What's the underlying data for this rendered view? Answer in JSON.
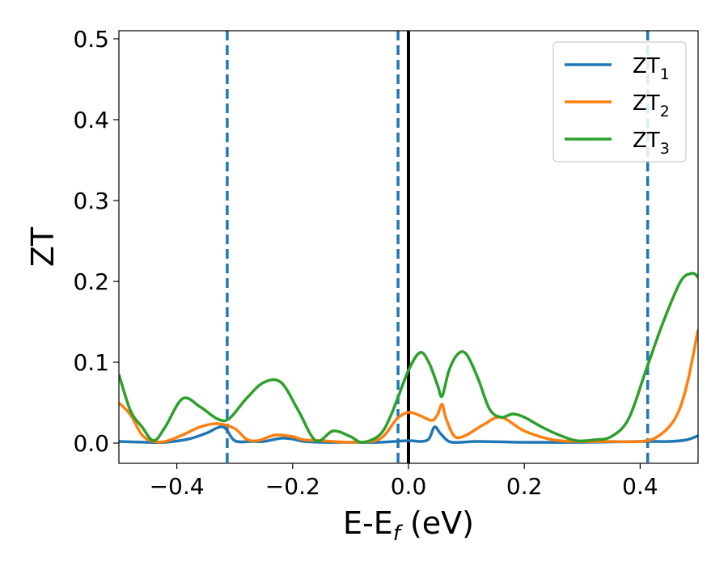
{
  "chart_data": {
    "type": "line",
    "xlabel": "E-E_f (eV)",
    "xlabel_main": "E-E",
    "xlabel_sub": "f",
    "xlabel_unit": " (eV)",
    "ylabel": "ZT",
    "xlim": [
      -0.5,
      0.5
    ],
    "ylim": [
      -0.025,
      0.51
    ],
    "x_ticks": [
      -0.4,
      -0.2,
      0.0,
      0.2,
      0.4
    ],
    "x_tick_labels": [
      "−0.4",
      "−0.2",
      "0.0",
      "0.2",
      "0.4"
    ],
    "y_ticks": [
      0.0,
      0.1,
      0.2,
      0.3,
      0.4,
      0.5
    ],
    "y_tick_labels": [
      "0.0",
      "0.1",
      "0.2",
      "0.3",
      "0.4",
      "0.5"
    ],
    "grid": false,
    "legend_position": "top-right",
    "vertical_lines": [
      {
        "x": -0.313,
        "style": "dashed",
        "color": "#1f77b4"
      },
      {
        "x": -0.018,
        "style": "dashed",
        "color": "#1f77b4"
      },
      {
        "x": 0.0,
        "style": "solid",
        "color": "#000000"
      },
      {
        "x": 0.413,
        "style": "dashed",
        "color": "#1f77b4"
      }
    ],
    "series": [
      {
        "name": "ZT",
        "subscript": "1",
        "color": "#1f77b4",
        "x": [
          -0.5,
          -0.45,
          -0.42,
          -0.38,
          -0.35,
          -0.32,
          -0.3,
          -0.27,
          -0.25,
          -0.22,
          -0.2,
          -0.18,
          -0.15,
          -0.1,
          -0.05,
          0.0,
          0.02,
          0.035,
          0.045,
          0.055,
          0.07,
          0.09,
          0.12,
          0.2,
          0.3,
          0.4,
          0.45,
          0.48,
          0.5
        ],
        "y": [
          0.002,
          0.001,
          0.001,
          0.005,
          0.012,
          0.02,
          0.003,
          0.002,
          0.002,
          0.006,
          0.005,
          0.002,
          0.001,
          0.001,
          0.001,
          0.003,
          0.002,
          0.005,
          0.02,
          0.012,
          0.002,
          0.001,
          0.002,
          0.001,
          0.001,
          0.002,
          0.002,
          0.004,
          0.009
        ]
      },
      {
        "name": "ZT",
        "subscript": "2",
        "color": "#ff7f0e",
        "x": [
          -0.5,
          -0.48,
          -0.46,
          -0.44,
          -0.42,
          -0.39,
          -0.36,
          -0.33,
          -0.3,
          -0.28,
          -0.26,
          -0.23,
          -0.2,
          -0.18,
          -0.15,
          -0.1,
          -0.05,
          -0.02,
          0.0,
          0.02,
          0.04,
          0.05,
          0.058,
          0.065,
          0.08,
          0.1,
          0.13,
          0.16,
          0.2,
          0.25,
          0.3,
          0.35,
          0.4,
          0.43,
          0.46,
          0.48,
          0.5
        ],
        "y": [
          0.05,
          0.035,
          0.01,
          0.002,
          0.002,
          0.01,
          0.02,
          0.024,
          0.018,
          0.005,
          0.003,
          0.01,
          0.008,
          0.004,
          0.003,
          0.001,
          0.005,
          0.03,
          0.038,
          0.034,
          0.028,
          0.035,
          0.048,
          0.03,
          0.008,
          0.01,
          0.023,
          0.032,
          0.015,
          0.004,
          0.002,
          0.002,
          0.002,
          0.008,
          0.03,
          0.07,
          0.14
        ]
      },
      {
        "name": "ZT",
        "subscript": "3",
        "color": "#2ca02c",
        "x": [
          -0.5,
          -0.48,
          -0.46,
          -0.44,
          -0.42,
          -0.39,
          -0.36,
          -0.33,
          -0.31,
          -0.28,
          -0.25,
          -0.22,
          -0.19,
          -0.16,
          -0.13,
          -0.1,
          -0.08,
          -0.05,
          -0.03,
          0.0,
          0.02,
          0.035,
          0.05,
          0.058,
          0.07,
          0.085,
          0.1,
          0.12,
          0.14,
          0.16,
          0.18,
          0.2,
          0.23,
          0.26,
          0.29,
          0.32,
          0.35,
          0.38,
          0.41,
          0.44,
          0.47,
          0.49,
          0.5
        ],
        "y": [
          0.085,
          0.04,
          0.02,
          0.003,
          0.02,
          0.055,
          0.045,
          0.03,
          0.03,
          0.055,
          0.075,
          0.075,
          0.04,
          0.003,
          0.015,
          0.008,
          0.001,
          0.01,
          0.035,
          0.09,
          0.112,
          0.1,
          0.072,
          0.058,
          0.09,
          0.11,
          0.11,
          0.08,
          0.042,
          0.032,
          0.036,
          0.032,
          0.02,
          0.01,
          0.003,
          0.004,
          0.008,
          0.03,
          0.09,
          0.15,
          0.2,
          0.21,
          0.205
        ]
      }
    ]
  }
}
